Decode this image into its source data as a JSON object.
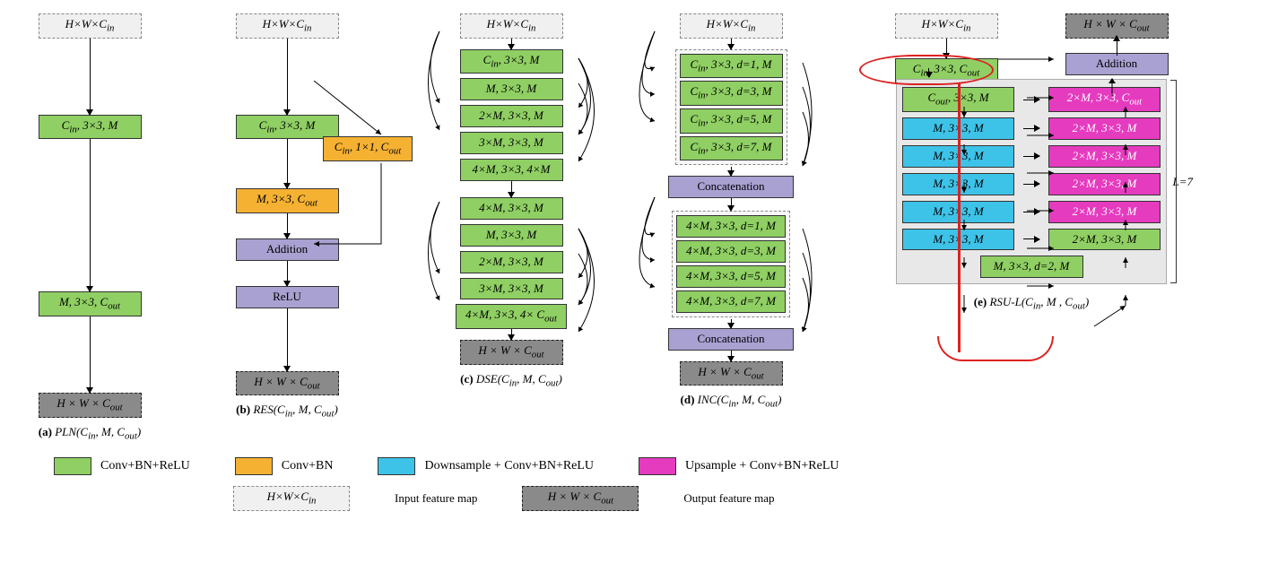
{
  "palette": {
    "green": "#8fcf63",
    "orange": "#f5b132",
    "purple": "#a8a1d1",
    "cyan": "#3ec3e8",
    "pink": "#e53bbf",
    "input_bg": "#f0f0f0",
    "output_bg": "#8a8a8a",
    "panel_bg": "#e8e8e8",
    "annotation_red": "#d22222"
  },
  "io_labels": {
    "in": "H×W×C_in",
    "out": "H × W × C_out"
  },
  "pln": {
    "blocks": [
      "C_in, 3×3, M",
      "M, 3×3, C_out"
    ],
    "caption_tag": "(a)",
    "caption": "PLN(C_in, M, C_out)"
  },
  "res": {
    "main": [
      "C_in, 3×3, M",
      "M, 3×3, C_out"
    ],
    "bypass": "C_in, 1×1, C_out",
    "add": "Addition",
    "relu": "ReLU",
    "caption_tag": "(b)",
    "caption": "RES(C_in, M, C_out)"
  },
  "dse": {
    "stack1": [
      "C_in, 3×3, M",
      "M, 3×3, M",
      "2×M, 3×3, M",
      "3×M, 3×3, M",
      "4×M, 3×3, 4×M"
    ],
    "stack2": [
      "4×M, 3×3, M",
      "M, 3×3, M",
      "2×M, 3×3, M",
      "3×M, 3×3, M",
      "4×M, 3×3, 4× C_out"
    ],
    "caption_tag": "(c)",
    "caption": "DSE(C_in, M, C_out)"
  },
  "inc": {
    "group1": [
      "C_in, 3×3, d=1, M",
      "C_in, 3×3, d=3, M",
      "C_in, 3×3, d=5, M",
      "C_in, 3×3, d=7, M"
    ],
    "concat": "Concatenation",
    "group2": [
      "4×M, 3×3, d=1, M",
      "4×M, 3×3, d=3, M",
      "4×M, 3×3, d=5, M",
      "4×M, 3×3, d=7, M"
    ],
    "caption_tag": "(d)",
    "caption": "INC(C_in, M, C_out)"
  },
  "rsu": {
    "top_in": "H×W×C_in",
    "top_out": "H × W × C_out",
    "first_green": "C_in, 3×3, C_out",
    "addition": "Addition",
    "left_col": [
      {
        "label": "C_out, 3×3, M",
        "type": "green"
      },
      {
        "label": "M, 3×3, M",
        "type": "cyan"
      },
      {
        "label": "M, 3×3, M",
        "type": "cyan"
      },
      {
        "label": "M, 3×3, M",
        "type": "cyan"
      },
      {
        "label": "M, 3×3, M",
        "type": "cyan"
      },
      {
        "label": "M, 3×3, M",
        "type": "cyan"
      }
    ],
    "right_col": [
      {
        "label": "2×M, 3×3, C_out",
        "type": "pink"
      },
      {
        "label": "2×M, 3×3, M",
        "type": "pink"
      },
      {
        "label": "2×M, 3×3, M",
        "type": "pink"
      },
      {
        "label": "2×M, 3×3, M",
        "type": "pink"
      },
      {
        "label": "2×M, 3×3, M",
        "type": "pink"
      },
      {
        "label": "2×M, 3×3, M",
        "type": "green"
      }
    ],
    "bottom": "M, 3×3, d=2, M",
    "side_label": "L=7",
    "caption_tag": "(e)",
    "caption": "RSU-L(C_in, M , C_out)"
  },
  "legend": {
    "green": "Conv+BN+ReLU",
    "orange": "Conv+BN",
    "cyan": "Downsample + Conv+BN+ReLU",
    "pink": "Upsample + Conv+BN+ReLU",
    "in_map": "Input feature map",
    "out_map": "Output feature map"
  },
  "fonts": {
    "caption_size_pt": 13,
    "block_size_pt": 13,
    "legend_size_pt": 14
  }
}
